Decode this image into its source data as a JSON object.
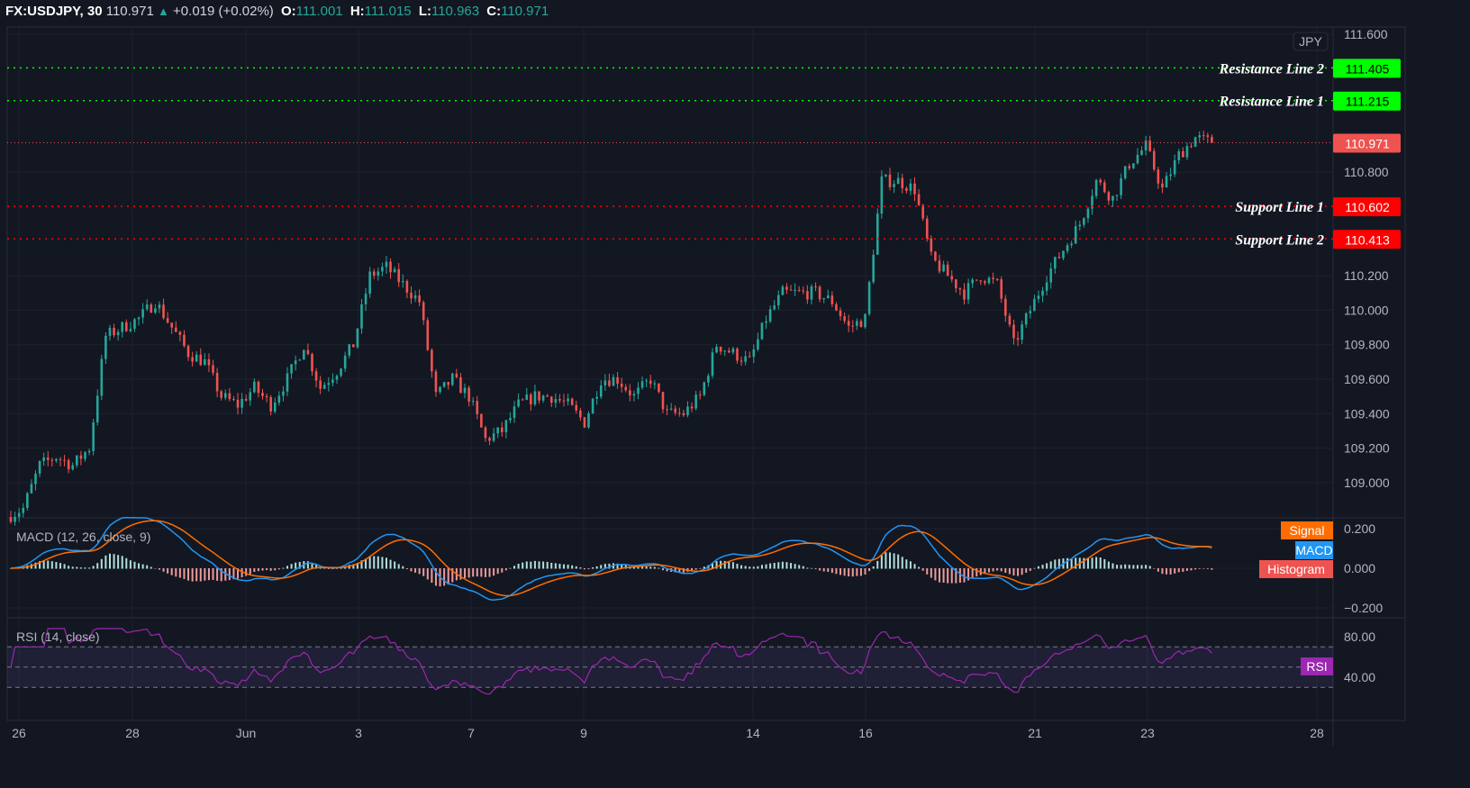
{
  "header": {
    "symbol": "FX:USDJPY, 30",
    "last": "110.971",
    "change": "+0.019 (+0.02%)",
    "o_label": "O:",
    "o": "111.001",
    "h_label": "H:",
    "h": "111.015",
    "l_label": "L:",
    "l": "110.963",
    "c_label": "C:",
    "c": "110.971",
    "up_icon": "triangle-up"
  },
  "currency": "JPY",
  "colors": {
    "bg": "#131722",
    "up": "#26a69a",
    "down": "#ef5350",
    "resistance": "#00ff00",
    "support": "#ff0000",
    "last": "#ef5350",
    "macd": "#2196f3",
    "signal": "#ff6d00",
    "rsi": "#9c27b0"
  },
  "chart_data": [
    {
      "type": "candlestick",
      "title": "FX:USDJPY, 30",
      "ylim": [
        108.85,
        111.6
      ],
      "y_ticks": [
        "111.600",
        "110.800",
        "110.200",
        "110.000",
        "109.800",
        "109.600",
        "109.400",
        "109.200",
        "109.000"
      ],
      "y_tick_values": [
        111.6,
        110.8,
        110.2,
        110.0,
        109.8,
        109.6,
        109.4,
        109.2,
        109.0
      ],
      "x_ticks": [
        "26",
        "28",
        "Jun",
        "3",
        "7",
        "9",
        "14",
        "16",
        "21",
        "23",
        "28"
      ],
      "close_path": [
        108.8,
        108.85,
        109.1,
        109.15,
        109.1,
        109.2,
        109.85,
        109.9,
        109.95,
        110.05,
        109.9,
        109.75,
        109.7,
        109.5,
        109.45,
        109.55,
        109.45,
        109.6,
        109.8,
        109.55,
        109.65,
        109.8,
        110.2,
        110.25,
        110.15,
        110.05,
        109.5,
        109.6,
        109.5,
        109.25,
        109.3,
        109.45,
        109.5,
        109.5,
        109.45,
        109.35,
        109.6,
        109.6,
        109.5,
        109.6,
        109.4,
        109.4,
        109.5,
        109.8,
        109.75,
        109.7,
        109.95,
        110.1,
        110.1,
        110.1,
        110.05,
        109.9,
        109.95,
        110.75,
        110.75,
        110.7,
        110.3,
        110.2,
        110.1,
        110.2,
        110.15,
        109.8,
        110.0,
        110.2,
        110.35,
        110.5,
        110.75,
        110.65,
        110.85,
        110.95,
        110.7,
        110.9,
        111.0,
        110.971
      ],
      "horizontal_lines": [
        {
          "label": "Resistance Line 2",
          "price": "111.405",
          "value": 111.405,
          "kind": "resistance"
        },
        {
          "label": "Resistance Line 1",
          "price": "111.215",
          "value": 111.215,
          "kind": "resistance"
        },
        {
          "label": "Support Line 1",
          "price": "110.602",
          "value": 110.602,
          "kind": "support"
        },
        {
          "label": "Support Line 2",
          "price": "110.413",
          "value": 110.413,
          "kind": "support"
        }
      ],
      "last_price": {
        "price": "110.971",
        "value": 110.971
      }
    },
    {
      "type": "line",
      "title": "MACD (12, 26, close, 9)",
      "ylim": [
        -0.25,
        0.25
      ],
      "y_ticks": [
        "0.200",
        "0.000",
        "−0.200"
      ],
      "y_tick_values": [
        0.2,
        0,
        -0.2
      ],
      "legend": [
        "Signal",
        "MACD",
        "Histogram"
      ]
    },
    {
      "type": "line",
      "title": "RSI (14, close)",
      "ylim": [
        20,
        90
      ],
      "y_ticks": [
        "80.00",
        "40.00"
      ],
      "y_tick_values": [
        80,
        40
      ],
      "bands": [
        70,
        50,
        30
      ],
      "legend": [
        "RSI"
      ]
    }
  ]
}
